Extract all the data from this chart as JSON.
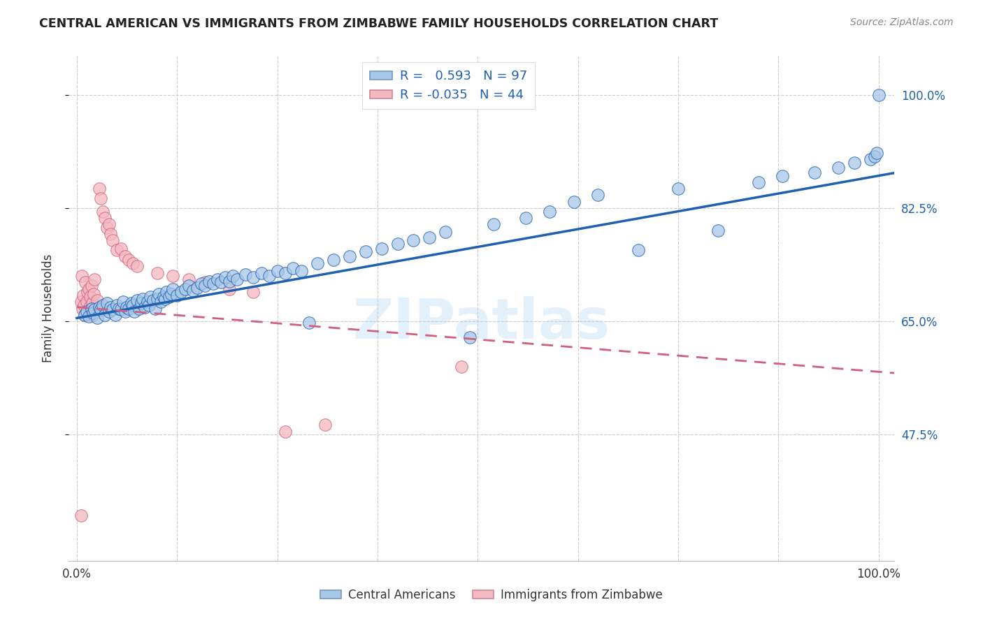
{
  "title": "CENTRAL AMERICAN VS IMMIGRANTS FROM ZIMBABWE FAMILY HOUSEHOLDS CORRELATION CHART",
  "source": "Source: ZipAtlas.com",
  "ylabel": "Family Households",
  "watermark": "ZIPatlas",
  "legend_label1": "R =   0.593   N = 97",
  "legend_label2": "R = -0.035   N = 44",
  "color1": "#a8c8e8",
  "color2": "#f4b8c0",
  "line_color1": "#2060b0",
  "line_color2": "#d06080",
  "background_color": "#ffffff",
  "xlim_min": -0.01,
  "xlim_max": 1.02,
  "ylim_min": 0.28,
  "ylim_max": 1.06,
  "ytick_positions": [
    0.475,
    0.65,
    0.825,
    1.0
  ],
  "ytick_labels": [
    "47.5%",
    "65.0%",
    "82.5%",
    "100.0%"
  ],
  "xtick_positions": [
    0.0,
    0.125,
    0.25,
    0.375,
    0.5,
    0.625,
    0.75,
    0.875,
    1.0
  ],
  "ca_x": [
    0.01,
    0.012,
    0.015,
    0.018,
    0.02,
    0.022,
    0.025,
    0.028,
    0.03,
    0.032,
    0.035,
    0.038,
    0.04,
    0.042,
    0.045,
    0.048,
    0.05,
    0.052,
    0.055,
    0.058,
    0.06,
    0.062,
    0.065,
    0.068,
    0.07,
    0.072,
    0.075,
    0.078,
    0.08,
    0.082,
    0.085,
    0.088,
    0.09,
    0.092,
    0.095,
    0.098,
    0.1,
    0.102,
    0.105,
    0.108,
    0.11,
    0.112,
    0.115,
    0.118,
    0.12,
    0.125,
    0.13,
    0.135,
    0.14,
    0.145,
    0.15,
    0.155,
    0.16,
    0.165,
    0.17,
    0.175,
    0.18,
    0.185,
    0.19,
    0.195,
    0.2,
    0.21,
    0.22,
    0.23,
    0.24,
    0.25,
    0.26,
    0.27,
    0.28,
    0.29,
    0.3,
    0.32,
    0.34,
    0.36,
    0.38,
    0.4,
    0.42,
    0.44,
    0.46,
    0.49,
    0.52,
    0.56,
    0.59,
    0.62,
    0.65,
    0.7,
    0.75,
    0.8,
    0.85,
    0.88,
    0.92,
    0.95,
    0.97,
    0.99,
    0.995,
    0.998,
    1.0
  ],
  "ca_y": [
    0.66,
    0.665,
    0.658,
    0.67,
    0.663,
    0.668,
    0.655,
    0.672,
    0.668,
    0.675,
    0.66,
    0.678,
    0.665,
    0.672,
    0.668,
    0.66,
    0.675,
    0.67,
    0.668,
    0.68,
    0.665,
    0.672,
    0.67,
    0.678,
    0.675,
    0.665,
    0.682,
    0.67,
    0.678,
    0.685,
    0.672,
    0.68,
    0.675,
    0.688,
    0.682,
    0.67,
    0.685,
    0.692,
    0.68,
    0.688,
    0.685,
    0.695,
    0.688,
    0.692,
    0.7,
    0.69,
    0.695,
    0.7,
    0.705,
    0.698,
    0.702,
    0.708,
    0.705,
    0.712,
    0.708,
    0.715,
    0.71,
    0.718,
    0.712,
    0.72,
    0.715,
    0.722,
    0.718,
    0.725,
    0.72,
    0.728,
    0.725,
    0.732,
    0.728,
    0.648,
    0.74,
    0.745,
    0.75,
    0.758,
    0.762,
    0.77,
    0.775,
    0.78,
    0.788,
    0.625,
    0.8,
    0.81,
    0.82,
    0.835,
    0.845,
    0.76,
    0.855,
    0.79,
    0.865,
    0.875,
    0.88,
    0.888,
    0.895,
    0.9,
    0.905,
    0.91,
    1.0
  ],
  "zim_x": [
    0.005,
    0.006,
    0.007,
    0.008,
    0.009,
    0.01,
    0.011,
    0.012,
    0.013,
    0.014,
    0.015,
    0.016,
    0.017,
    0.018,
    0.019,
    0.02,
    0.021,
    0.022,
    0.023,
    0.025,
    0.028,
    0.03,
    0.032,
    0.035,
    0.038,
    0.04,
    0.042,
    0.045,
    0.05,
    0.055,
    0.06,
    0.065,
    0.07,
    0.075,
    0.1,
    0.12,
    0.14,
    0.16,
    0.19,
    0.22,
    0.26,
    0.31,
    0.48,
    0.005
  ],
  "zim_y": [
    0.68,
    0.72,
    0.67,
    0.69,
    0.675,
    0.66,
    0.71,
    0.68,
    0.695,
    0.665,
    0.7,
    0.672,
    0.688,
    0.705,
    0.678,
    0.66,
    0.692,
    0.715,
    0.67,
    0.682,
    0.855,
    0.84,
    0.82,
    0.81,
    0.795,
    0.8,
    0.785,
    0.775,
    0.76,
    0.762,
    0.75,
    0.745,
    0.74,
    0.735,
    0.725,
    0.72,
    0.715,
    0.71,
    0.7,
    0.695,
    0.48,
    0.49,
    0.58,
    0.35
  ]
}
